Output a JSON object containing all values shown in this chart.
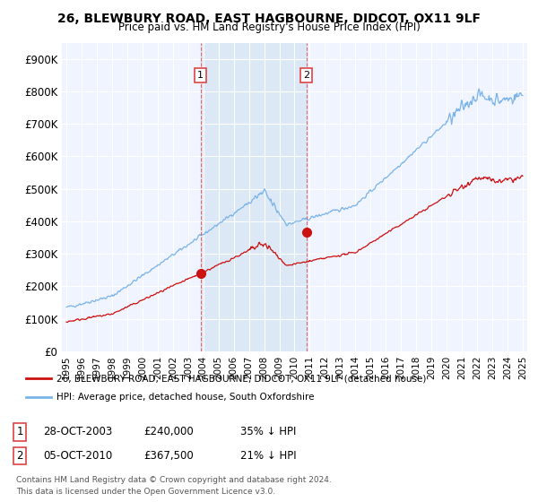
{
  "title": "26, BLEWBURY ROAD, EAST HAGBOURNE, DIDCOT, OX11 9LF",
  "subtitle": "Price paid vs. HM Land Registry's House Price Index (HPI)",
  "ylabel_ticks": [
    "£0",
    "£100K",
    "£200K",
    "£300K",
    "£400K",
    "£500K",
    "£600K",
    "£700K",
    "£800K",
    "£900K"
  ],
  "ylim": [
    0,
    950000
  ],
  "yticks": [
    0,
    100000,
    200000,
    300000,
    400000,
    500000,
    600000,
    700000,
    800000,
    900000
  ],
  "hpi_color": "#7ab4e8",
  "price_color": "#cc1111",
  "sale1_date": 2003.82,
  "sale1_price": 240000,
  "sale2_date": 2010.78,
  "sale2_price": 367500,
  "legend_house": "26, BLEWBURY ROAD, EAST HAGBOURNE, DIDCOT, OX11 9LF (detached house)",
  "legend_hpi": "HPI: Average price, detached house, South Oxfordshire",
  "annotation1_label": "1",
  "annotation1_date": "28-OCT-2003",
  "annotation1_price": "£240,000",
  "annotation1_hpi": "35% ↓ HPI",
  "annotation2_label": "2",
  "annotation2_date": "05-OCT-2010",
  "annotation2_price": "£367,500",
  "annotation2_hpi": "21% ↓ HPI",
  "footer": "Contains HM Land Registry data © Crown copyright and database right 2024.\nThis data is licensed under the Open Government Licence v3.0.",
  "bg_color": "#ffffff",
  "plot_bg_color": "#f0f4ff",
  "shade_color": "#dce8f5",
  "vline_color": "#dd4444"
}
